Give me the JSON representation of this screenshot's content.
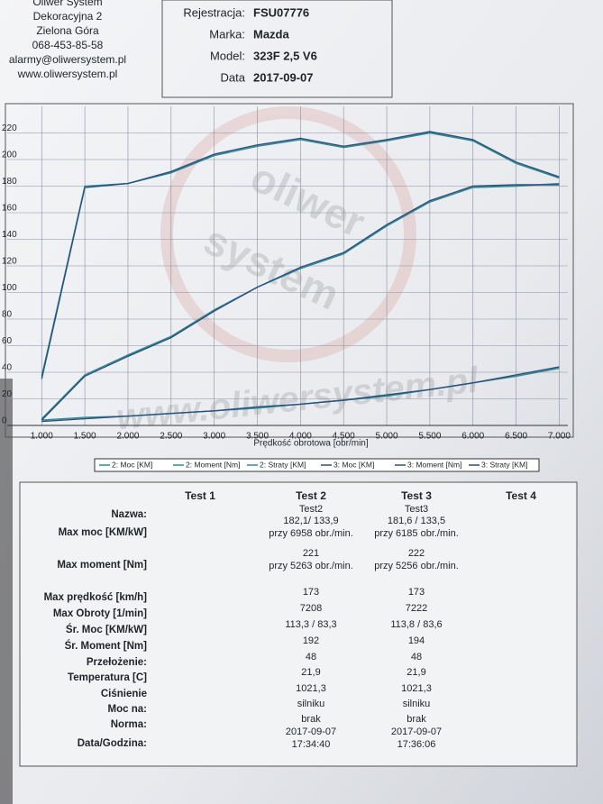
{
  "header": {
    "company": [
      "Oliwer System",
      "Dekoracyjna 2",
      "Zielona Góra",
      "068-453-85-58",
      "alarmy@oliwersystem.pl",
      "www.oliwersystem.pl"
    ],
    "fields": [
      {
        "label": "Rejestracja:",
        "value": "FSU07776"
      },
      {
        "label": "Marka:",
        "value": "Mazda"
      },
      {
        "label": "Model:",
        "value": "323F  2,5 V6"
      },
      {
        "label": "Data",
        "value": "2017-09-07"
      }
    ]
  },
  "watermark": [
    "oliwer",
    "system",
    "www.oliwersystem.pl"
  ],
  "chart_data": {
    "type": "line",
    "x_label": "Prędkość obrotowa [obr/min]",
    "x": [
      1000,
      1500,
      2000,
      2500,
      3000,
      3500,
      4000,
      4500,
      5000,
      5500,
      6000,
      6500,
      7000
    ],
    "xlim": [
      600,
      7100
    ],
    "xticks": [
      {
        "value": 1000,
        "label": "1.000"
      },
      {
        "value": 1500,
        "label": "1.500"
      },
      {
        "value": 2000,
        "label": "2.000"
      },
      {
        "value": 2500,
        "label": "2.500"
      },
      {
        "value": 3000,
        "label": "3.000"
      },
      {
        "value": 3500,
        "label": "3.500"
      },
      {
        "value": 4000,
        "label": "4.000"
      },
      {
        "value": 4500,
        "label": "4.500"
      },
      {
        "value": 5000,
        "label": "5.000"
      },
      {
        "value": 5500,
        "label": "5.500"
      },
      {
        "value": 6000,
        "label": "6.000"
      },
      {
        "value": 6500,
        "label": "6.500"
      },
      {
        "value": 7000,
        "label": "7.000"
      }
    ],
    "ylim": [
      0,
      240
    ],
    "yticks": [
      0,
      20,
      40,
      60,
      80,
      100,
      120,
      140,
      160,
      180,
      200,
      220
    ],
    "grid": true,
    "series": [
      {
        "name": "2: Moc [KM]",
        "color": "#2b8c8c",
        "values": [
          5,
          38,
          53,
          67,
          87,
          104,
          118,
          129,
          150,
          168,
          179,
          180,
          182
        ]
      },
      {
        "name": "2: Moment [Nm]",
        "color": "#2b8c8c",
        "values": [
          37,
          180,
          182,
          190,
          203,
          210,
          215,
          209,
          214,
          220,
          214,
          197,
          186
        ]
      },
      {
        "name": "2: Straty [KM]",
        "color": "#2b8c8c",
        "values": [
          4,
          6,
          7,
          9,
          11,
          13,
          16,
          19,
          22,
          27,
          32,
          37,
          43
        ]
      },
      {
        "name": "3: Moc [KM]",
        "color": "#2a4f80",
        "values": [
          4,
          37,
          52,
          66,
          86,
          104,
          119,
          130,
          151,
          169,
          180,
          181,
          181
        ]
      },
      {
        "name": "3: Moment [Nm]",
        "color": "#2a4f80",
        "values": [
          35,
          179,
          182,
          191,
          204,
          211,
          216,
          210,
          215,
          221,
          215,
          198,
          187
        ]
      },
      {
        "name": "3: Straty [KM]",
        "color": "#2a4f80",
        "values": [
          3,
          5,
          7,
          9,
          11,
          14,
          16,
          19,
          23,
          27,
          32,
          38,
          44
        ]
      }
    ]
  },
  "table": {
    "name_label": "Nazwa:",
    "columns": [
      "Test 1",
      "Test 2",
      "Test 3",
      "Test 4"
    ],
    "rows": [
      {
        "label": "Nazwa:",
        "values": [
          [
            "Test2"
          ],
          [
            "Test3"
          ]
        ]
      },
      {
        "label": "Max moc [KM/kW]",
        "values": [
          [
            "182,1/ 133,9",
            "przy 6958 obr./min."
          ],
          [
            "181,6 / 133,5",
            "przy 6185 obr./min."
          ]
        ]
      },
      {
        "label": "Max moment [Nm]",
        "values": [
          [
            "221",
            "przy 5263 obr./min."
          ],
          [
            "222",
            "przy 5256 obr./min."
          ]
        ]
      },
      {
        "label": "Max prędkość [km/h]",
        "values": [
          [
            "173"
          ],
          [
            "173"
          ]
        ]
      },
      {
        "label": "Max Obroty [1/min]",
        "values": [
          [
            "7208"
          ],
          [
            "7222"
          ]
        ]
      },
      {
        "label": "Śr. Moc [KM/kW]",
        "values": [
          [
            "113,3 / 83,3"
          ],
          [
            "113,8 / 83,6"
          ]
        ]
      },
      {
        "label": "Śr. Moment [Nm]",
        "values": [
          [
            "192"
          ],
          [
            "194"
          ]
        ]
      },
      {
        "label": "Przełożenie:",
        "values": [
          [
            "48"
          ],
          [
            "48"
          ]
        ]
      },
      {
        "label": "Temperatura [C]",
        "values": [
          [
            "21,9"
          ],
          [
            "21,9"
          ]
        ]
      },
      {
        "label": "Ciśnienie",
        "values": [
          [
            "1021,3"
          ],
          [
            "1021,3"
          ]
        ]
      },
      {
        "label": "Moc na:",
        "values": [
          [
            "silniku"
          ],
          [
            "silniku"
          ]
        ]
      },
      {
        "label": "Norma:",
        "values": [
          [
            "brak"
          ],
          [
            "brak"
          ]
        ]
      },
      {
        "label": "Data/Godzina:",
        "values": [
          [
            "2017-09-07",
            "17:34:40"
          ],
          [
            "2017-09-07",
            "17:36:06"
          ]
        ]
      }
    ]
  }
}
